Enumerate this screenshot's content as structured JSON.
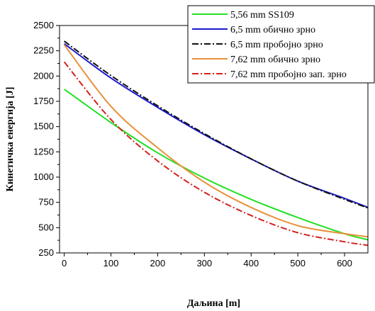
{
  "chart_data": {
    "type": "line",
    "title": "",
    "xlabel": "Даљина [m]",
    "ylabel": "Кинетичка енергија [J]",
    "xlim": [
      -10,
      650
    ],
    "ylim": [
      250,
      2500
    ],
    "xticks": [
      0,
      100,
      200,
      300,
      400,
      500,
      600
    ],
    "yticks": [
      250,
      500,
      750,
      1000,
      1250,
      1500,
      1750,
      2000,
      2250,
      2500
    ],
    "grid": false,
    "legend_position": "top-right",
    "series": [
      {
        "name": "5,56 mm SS109",
        "color": "#22e022",
        "dash": "solid",
        "x": [
          0,
          100,
          200,
          300,
          400,
          500,
          600,
          650
        ],
        "y": [
          1870,
          1540,
          1240,
          990,
          780,
          600,
          440,
          380
        ]
      },
      {
        "name": "6,5 mm обично зрно",
        "color": "#1a1acc",
        "dash": "solid",
        "x": [
          0,
          100,
          200,
          300,
          400,
          500,
          600,
          650
        ],
        "y": [
          2320,
          1980,
          1690,
          1420,
          1180,
          960,
          790,
          700
        ]
      },
      {
        "name": "6,5 mm пробојно зрно",
        "color": "#111111",
        "dash": "dashdot",
        "x": [
          0,
          100,
          200,
          300,
          400,
          500,
          600,
          650
        ],
        "y": [
          2345,
          2005,
          1705,
          1430,
          1180,
          960,
          780,
          695
        ]
      },
      {
        "name": "7,62 mm обично зрно",
        "color": "#e8913a",
        "dash": "solid",
        "x": [
          0,
          100,
          200,
          300,
          400,
          500,
          600,
          650
        ],
        "y": [
          2310,
          1700,
          1290,
          950,
          700,
          520,
          440,
          410
        ]
      },
      {
        "name": "7,62 mm пробојно зап. зрно",
        "color": "#d42020",
        "dash": "dashdot",
        "x": [
          0,
          100,
          200,
          300,
          400,
          500,
          600,
          650
        ],
        "y": [
          2140,
          1570,
          1160,
          850,
          620,
          450,
          360,
          325
        ]
      }
    ]
  }
}
